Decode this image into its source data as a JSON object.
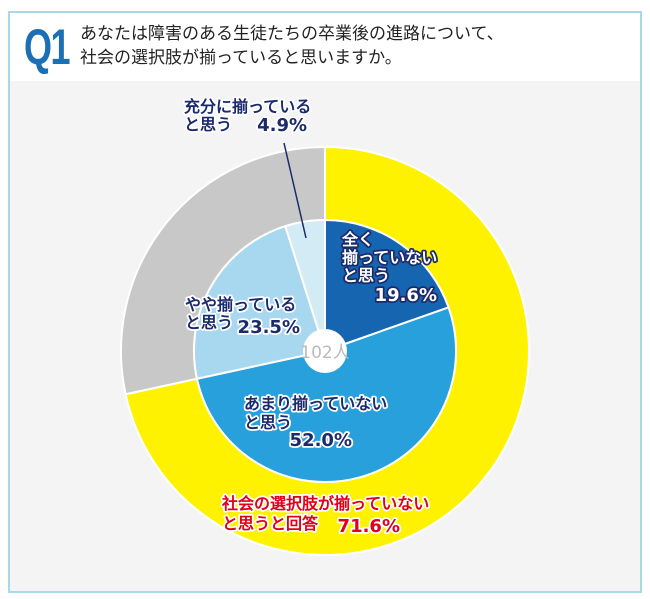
{
  "header": {
    "q_label": "Q1",
    "question_line1": "あなたは障害のある生徒たちの卒業後の進路について、",
    "question_line2": "社会の選択肢が揃っていると思いますか。"
  },
  "chart_data": {
    "type": "pie",
    "center_label": "102人",
    "outer_ring": [
      {
        "name_lines": [
          "社会の選択肢が揃っていない",
          "と思うと回答"
        ],
        "value": 71.6,
        "label": "71.6%",
        "color": "#fff200"
      },
      {
        "name_lines": [],
        "value": 28.4,
        "label": "",
        "color": "#c8c8c8"
      }
    ],
    "inner_pie": [
      {
        "name_lines": [
          "全く",
          "揃っていない",
          "と思う"
        ],
        "value": 19.6,
        "label": "19.6%",
        "color": "#1565b0"
      },
      {
        "name_lines": [
          "あまり揃っていない",
          "と思う"
        ],
        "value": 52.0,
        "label": "52.0%",
        "color": "#27a0dc"
      },
      {
        "name_lines": [
          "やや揃っている",
          "と思う"
        ],
        "value": 23.5,
        "label": "23.5%",
        "color": "#a7d8ef"
      },
      {
        "name_lines": [
          "充分に揃っている",
          "と思う"
        ],
        "value": 4.9,
        "label": "4.9%",
        "color": "#d3ebf4"
      }
    ]
  }
}
